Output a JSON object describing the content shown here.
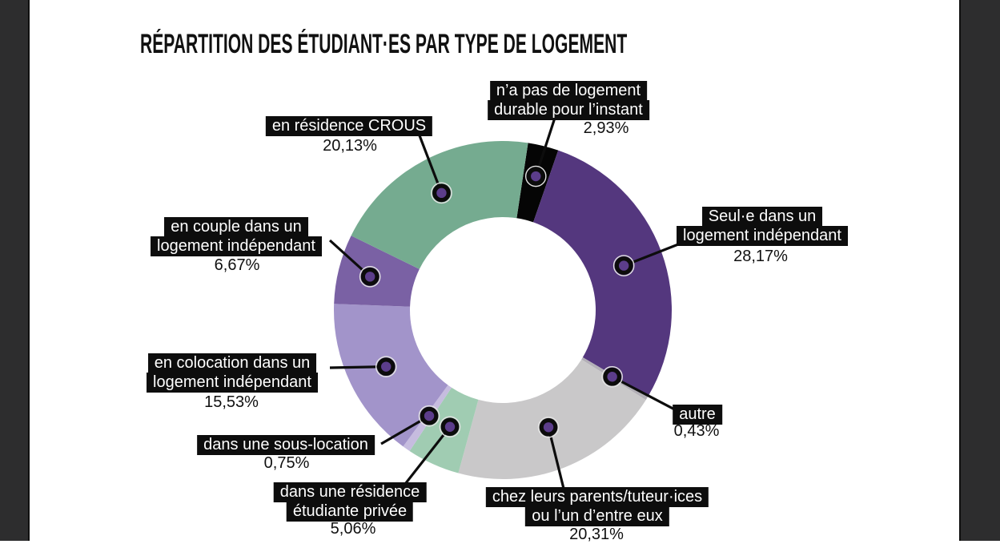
{
  "window": {
    "frame_color": "#2d2d2e",
    "page_background": "#ffffff"
  },
  "header": {
    "title": "RÉPARTITION DES ÉTUDIANT·ES PAR TYPE DE LOGEMENT"
  },
  "chart_data": {
    "type": "pie",
    "variant": "donut",
    "title": "RÉPARTITION DES ÉTUDIANT·ES PAR TYPE DE LOGEMENT",
    "value_unit": "percent",
    "direction": "clockwise",
    "rotation_deg": 8.6,
    "donut_hole_ratio": 0.55,
    "label_style": {
      "background": "#0d0d0d",
      "text_color": "#ffffff"
    },
    "marker_color": "#5c3d8b",
    "segments": [
      {
        "id": "sans-logement-durable",
        "label": "n’a pas de logement durable pour l’instant",
        "label_lines": [
          "n’a pas de logement",
          "durable pour l’instant"
        ],
        "value": 2.93,
        "display": "2,93%",
        "color": "#050505"
      },
      {
        "id": "seul",
        "label": "Seul·e dans un logement indépendant",
        "label_lines": [
          "Seul·e dans un",
          "logement indépendant"
        ],
        "value": 28.17,
        "display": "28,17%",
        "color": "#54377e"
      },
      {
        "id": "autre",
        "label": "autre",
        "label_lines": [
          "autre"
        ],
        "value": 0.43,
        "display": "0,43%",
        "color": "#b3b0b7"
      },
      {
        "id": "parents",
        "label": "chez leurs parents/tuteur·ices ou l’un d’entre eux",
        "label_lines": [
          "chez leurs parents/tuteur·ices",
          "ou l’un d’entre eux"
        ],
        "value": 20.31,
        "display": "20,31%",
        "color": "#c9c8c9"
      },
      {
        "id": "residence-privee",
        "label": "dans une résidence étudiante privée",
        "label_lines": [
          "dans une résidence",
          "étudiante privée"
        ],
        "value": 5.06,
        "display": "5,06%",
        "color": "#a0ccb2"
      },
      {
        "id": "sous-location",
        "label": "dans une sous-location",
        "label_lines": [
          "dans une sous-location"
        ],
        "value": 0.75,
        "display": "0,75%",
        "color": "#c6bcdf"
      },
      {
        "id": "colocation",
        "label": "en colocation dans un logement indépendant",
        "label_lines": [
          "en colocation dans un",
          "logement indépendant"
        ],
        "value": 15.53,
        "display": "15,53%",
        "color": "#a294ca"
      },
      {
        "id": "couple",
        "label": "en couple dans un logement indépendant",
        "label_lines": [
          "en couple dans un",
          "logement indépendant"
        ],
        "value": 6.67,
        "display": "6,67%",
        "color": "#7a61a4"
      },
      {
        "id": "crous",
        "label": "en résidence CROUS",
        "label_lines": [
          "en résidence CROUS"
        ],
        "value": 20.13,
        "display": "20,13%",
        "color": "#75ab90"
      }
    ]
  }
}
